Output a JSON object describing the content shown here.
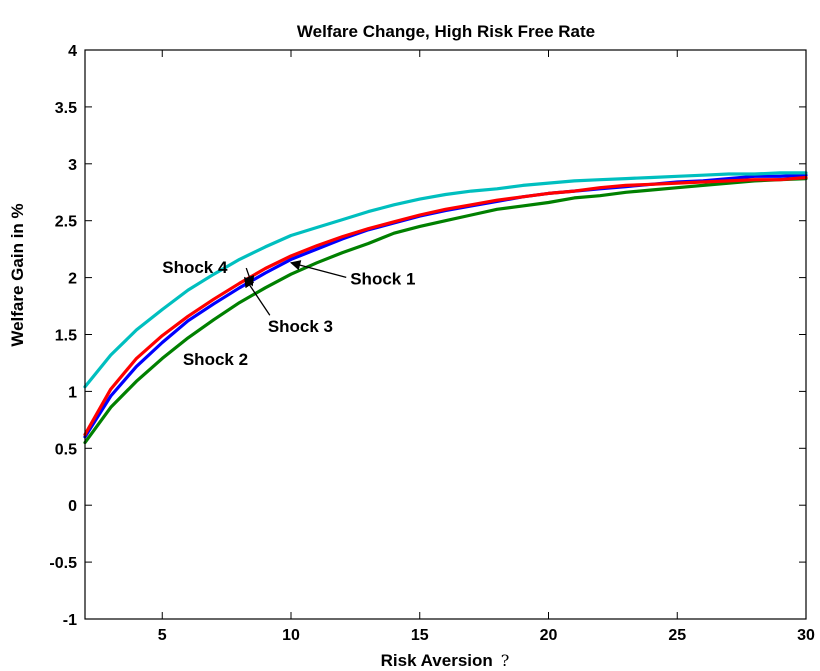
{
  "chart_data": {
    "type": "line",
    "title": "Welfare Change, High Risk Free Rate",
    "xlabel": "Risk Aversion",
    "xlabel_symbol": "?",
    "ylabel": "Welfare Gain in %",
    "xlim": [
      2,
      30
    ],
    "ylim": [
      -1,
      4
    ],
    "xticks": [
      5,
      10,
      15,
      20,
      25,
      30
    ],
    "yticks": [
      -1,
      -0.5,
      0,
      0.5,
      1,
      1.5,
      2,
      2.5,
      3,
      3.5,
      4
    ],
    "ytick_labels": [
      "-1",
      "-0.5",
      "0",
      "0.5",
      "1",
      "1.5",
      "2",
      "2.5",
      "3",
      "3.5",
      "4"
    ],
    "grid": false,
    "x": [
      2,
      3,
      4,
      5,
      6,
      7,
      8,
      9,
      10,
      11,
      12,
      13,
      14,
      15,
      16,
      17,
      18,
      19,
      20,
      21,
      22,
      23,
      24,
      25,
      26,
      27,
      28,
      29,
      30
    ],
    "series": [
      {
        "color": "#0000ff",
        "values": [
          0.6,
          0.96,
          1.22,
          1.43,
          1.62,
          1.77,
          1.91,
          2.04,
          2.16,
          2.25,
          2.34,
          2.42,
          2.48,
          2.54,
          2.59,
          2.63,
          2.67,
          2.71,
          2.74,
          2.76,
          2.78,
          2.8,
          2.82,
          2.84,
          2.85,
          2.87,
          2.89,
          2.89,
          2.9
        ]
      },
      {
        "color": "#008000",
        "values": [
          0.55,
          0.86,
          1.09,
          1.29,
          1.47,
          1.63,
          1.78,
          1.91,
          2.03,
          2.13,
          2.22,
          2.3,
          2.39,
          2.45,
          2.5,
          2.55,
          2.6,
          2.63,
          2.66,
          2.7,
          2.72,
          2.75,
          2.77,
          2.79,
          2.81,
          2.83,
          2.85,
          2.86,
          2.87
        ]
      },
      {
        "color": "#ff0000",
        "values": [
          0.62,
          1.02,
          1.29,
          1.49,
          1.66,
          1.81,
          1.95,
          2.08,
          2.19,
          2.28,
          2.36,
          2.43,
          2.49,
          2.55,
          2.6,
          2.64,
          2.68,
          2.71,
          2.74,
          2.76,
          2.79,
          2.81,
          2.82,
          2.83,
          2.84,
          2.85,
          2.86,
          2.86,
          2.88
        ]
      },
      {
        "color": "#00bfbf",
        "values": [
          1.04,
          1.32,
          1.54,
          1.72,
          1.89,
          2.03,
          2.16,
          2.27,
          2.37,
          2.44,
          2.51,
          2.58,
          2.64,
          2.69,
          2.73,
          2.76,
          2.78,
          2.81,
          2.83,
          2.85,
          2.86,
          2.87,
          2.88,
          2.89,
          2.9,
          2.91,
          2.91,
          2.92,
          2.92
        ]
      }
    ],
    "annotations": [
      {
        "text": "Shock 1",
        "arrow": true,
        "point_x": 10.0,
        "point_y": 2.13,
        "text_x": 12.3,
        "text_y": 1.94
      },
      {
        "text": "Shock 2",
        "arrow": false,
        "text_x": 5.8,
        "text_y": 1.23
      },
      {
        "text": "Shock 3",
        "arrow": true,
        "point_x": 8.2,
        "point_y": 2.0,
        "text_x": 9.1,
        "text_y": 1.52
      },
      {
        "text": "Shock 4",
        "arrow": true,
        "point_x": 8.5,
        "point_y": 1.93,
        "text_x": 5.0,
        "text_y": 2.04
      }
    ]
  }
}
